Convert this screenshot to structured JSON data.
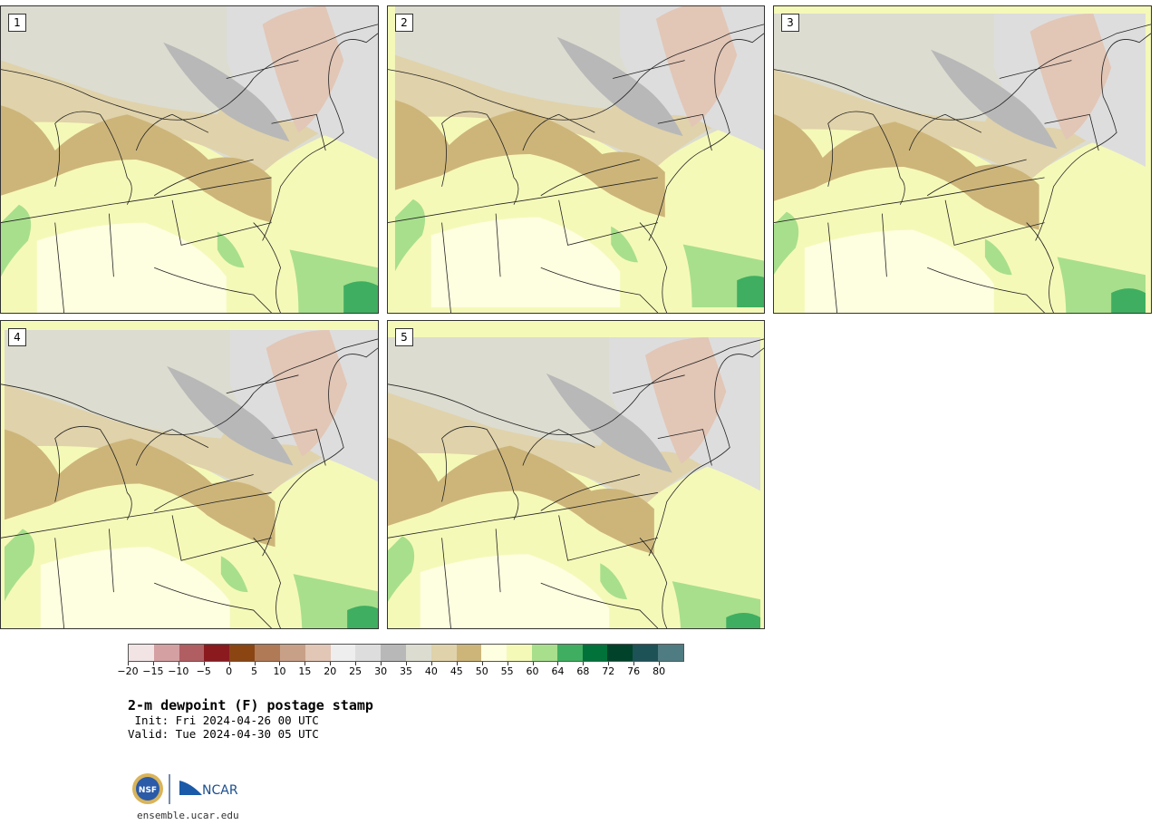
{
  "panels": [
    {
      "label": "1"
    },
    {
      "label": "2"
    },
    {
      "label": "3"
    },
    {
      "label": "4"
    },
    {
      "label": "5"
    }
  ],
  "legend": {
    "colors": [
      "#f2e4e4",
      "#d4a0a2",
      "#b05e62",
      "#8b1a1f",
      "#8b4513",
      "#b07a56",
      "#c8a088",
      "#e2c6b6",
      "#eeeeee",
      "#dddddd",
      "#b8b8b8",
      "#dcdcd0",
      "#e0d2aa",
      "#cdb57a",
      "#fefee0",
      "#f5f9b8",
      "#a8df8c",
      "#3fae60",
      "#00723a",
      "#00432a",
      "#1d5257",
      "#4f7c82"
    ],
    "ticks": [
      "−20",
      "−15",
      "−10",
      "−5",
      "0",
      "5",
      "10",
      "15",
      "20",
      "25",
      "30",
      "35",
      "40",
      "45",
      "50",
      "55",
      "60",
      "64",
      "68",
      "72",
      "76",
      "80"
    ]
  },
  "title": "2-m dewpoint (F) postage stamp",
  "init": " Init: Fri 2024-04-26 00 UTC",
  "valid": "Valid: Tue 2024-04-30 05 UTC",
  "logo": {
    "left": "NSF",
    "right": "NCAR"
  },
  "site": "ensemble.ucar.edu"
}
